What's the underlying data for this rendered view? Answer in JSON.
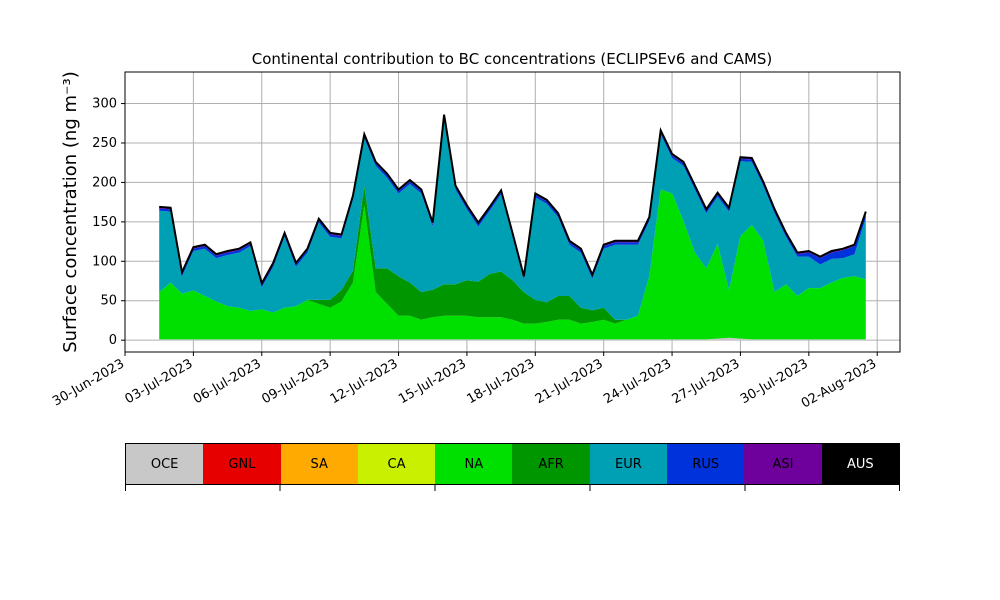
{
  "chart_data": {
    "type": "area",
    "title": "Continental contribution to BC concentrations (ECLIPSEv6 and CAMS)",
    "ylabel": "Surface concentration (ng m⁻³)",
    "xlabel": "",
    "ylim": [
      -15,
      340
    ],
    "x_range": [
      "2023-06-30",
      "2023-08-03"
    ],
    "x_ticks": [
      "30-Jun-2023",
      "03-Jul-2023",
      "06-Jul-2023",
      "09-Jul-2023",
      "12-Jul-2023",
      "15-Jul-2023",
      "18-Jul-2023",
      "21-Jul-2023",
      "24-Jul-2023",
      "27-Jul-2023",
      "30-Jul-2023",
      "02-Aug-2023"
    ],
    "y_ticks": [
      0,
      50,
      100,
      150,
      200,
      250,
      300
    ],
    "grid": true,
    "legend_placement": "bottom colorbar",
    "dates": [
      "2023-07-01T12:00",
      "2023-07-02T00:00",
      "2023-07-02T12:00",
      "2023-07-03T00:00",
      "2023-07-03T12:00",
      "2023-07-04T00:00",
      "2023-07-04T12:00",
      "2023-07-05T00:00",
      "2023-07-05T12:00",
      "2023-07-06T00:00",
      "2023-07-06T12:00",
      "2023-07-07T00:00",
      "2023-07-07T12:00",
      "2023-07-08T00:00",
      "2023-07-08T12:00",
      "2023-07-09T00:00",
      "2023-07-09T12:00",
      "2023-07-10T00:00",
      "2023-07-10T12:00",
      "2023-07-11T00:00",
      "2023-07-11T12:00",
      "2023-07-12T00:00",
      "2023-07-12T12:00",
      "2023-07-13T00:00",
      "2023-07-13T12:00",
      "2023-07-14T00:00",
      "2023-07-14T12:00",
      "2023-07-15T00:00",
      "2023-07-15T12:00",
      "2023-07-16T00:00",
      "2023-07-16T12:00",
      "2023-07-17T00:00",
      "2023-07-17T12:00",
      "2023-07-18T00:00",
      "2023-07-18T12:00",
      "2023-07-19T00:00",
      "2023-07-19T12:00",
      "2023-07-20T00:00",
      "2023-07-20T12:00",
      "2023-07-21T00:00",
      "2023-07-21T12:00",
      "2023-07-22T00:00",
      "2023-07-22T12:00",
      "2023-07-23T00:00",
      "2023-07-23T12:00",
      "2023-07-24T00:00",
      "2023-07-24T12:00",
      "2023-07-25T00:00",
      "2023-07-25T12:00",
      "2023-07-26T00:00",
      "2023-07-26T12:00",
      "2023-07-27T00:00",
      "2023-07-27T12:00",
      "2023-07-28T00:00",
      "2023-07-28T12:00",
      "2023-07-29T00:00",
      "2023-07-29T12:00",
      "2023-07-30T00:00",
      "2023-07-30T12:00",
      "2023-07-31T00:00",
      "2023-07-31T12:00",
      "2023-08-01T00:00",
      "2023-08-01T12:00"
    ],
    "series": [
      {
        "name": "OCE",
        "color": "#c8c8c8",
        "values": [
          1,
          1,
          1,
          1,
          1,
          1,
          1,
          1,
          1,
          1,
          1,
          1,
          1,
          1,
          1,
          1,
          1,
          1,
          1,
          1,
          1,
          1,
          1,
          1,
          1,
          1,
          1,
          1,
          1,
          1,
          1,
          1,
          1,
          1,
          1,
          1,
          1,
          1,
          1,
          1,
          1,
          1,
          1,
          1,
          1,
          1,
          1,
          1,
          1,
          2,
          3,
          2,
          1,
          1,
          1,
          1,
          1,
          1,
          1,
          1,
          1,
          1,
          1
        ]
      },
      {
        "name": "GNL",
        "color": "#e60000",
        "values": [
          0,
          0,
          0,
          0,
          0,
          0,
          0,
          0,
          0,
          0,
          0,
          0,
          0,
          0,
          0,
          0,
          0,
          0,
          0,
          0,
          0,
          0,
          0,
          0,
          0,
          0,
          0,
          0,
          0,
          0,
          0,
          0,
          0,
          0,
          0,
          0,
          0,
          0,
          0,
          0,
          0,
          0,
          0,
          0,
          0,
          0,
          0,
          0,
          0,
          0,
          0,
          0,
          0,
          0,
          0,
          0,
          0,
          0,
          0,
          0,
          0,
          0,
          0
        ]
      },
      {
        "name": "SA",
        "color": "#ffaa00",
        "values": [
          0,
          0,
          0,
          0,
          0,
          0,
          0,
          0,
          0,
          0,
          0,
          0,
          0,
          0,
          0,
          0,
          0,
          0,
          0,
          0,
          0,
          0,
          0,
          0,
          0,
          0,
          0,
          0,
          0,
          0,
          0,
          0,
          0,
          0,
          0,
          0,
          0,
          0,
          0,
          0,
          0,
          0,
          0,
          0,
          0,
          0,
          0,
          0,
          0,
          0,
          0,
          0,
          0,
          0,
          0,
          0,
          0,
          0,
          0,
          0,
          0,
          0,
          0
        ]
      },
      {
        "name": "CA",
        "color": "#c8f000",
        "values": [
          0,
          0,
          0,
          0,
          0,
          0,
          0,
          0,
          0,
          0,
          0,
          0,
          0,
          0,
          0,
          0,
          0,
          0,
          0,
          0,
          0,
          0,
          0,
          0,
          0,
          0,
          0,
          0,
          0,
          0,
          0,
          0,
          0,
          0,
          0,
          0,
          0,
          0,
          0,
          0,
          0,
          0,
          0,
          0,
          0,
          0,
          0,
          0,
          0,
          0,
          0,
          0,
          0,
          0,
          0,
          0,
          0,
          0,
          0,
          0,
          0,
          0,
          0
        ]
      },
      {
        "name": "NA",
        "color": "#00e000",
        "values": [
          60,
          72,
          58,
          62,
          55,
          48,
          42,
          40,
          36,
          38,
          34,
          40,
          42,
          50,
          45,
          40,
          48,
          72,
          170,
          60,
          45,
          30,
          30,
          25,
          28,
          30,
          30,
          30,
          28,
          28,
          28,
          25,
          20,
          20,
          22,
          25,
          25,
          20,
          22,
          25,
          20,
          25,
          30,
          80,
          190,
          185,
          150,
          110,
          90,
          120,
          60,
          130,
          145,
          125,
          60,
          70,
          55,
          65,
          65,
          72,
          78,
          80,
          76
        ]
      },
      {
        "name": "AFR",
        "color": "#009600",
        "values": [
          0,
          0,
          0,
          0,
          0,
          0,
          0,
          0,
          0,
          0,
          0,
          0,
          0,
          0,
          5,
          10,
          15,
          15,
          25,
          30,
          45,
          50,
          42,
          35,
          35,
          40,
          40,
          45,
          45,
          55,
          58,
          50,
          40,
          30,
          25,
          30,
          30,
          20,
          15,
          15,
          5,
          0,
          0,
          0,
          0,
          0,
          0,
          0,
          0,
          0,
          0,
          0,
          0,
          0,
          0,
          0,
          0,
          0,
          0,
          0,
          0,
          0,
          0
        ]
      },
      {
        "name": "EUR",
        "color": "#00a0b4",
        "values": [
          103,
          90,
          22,
          50,
          60,
          55,
          65,
          70,
          82,
          28,
          58,
          90,
          50,
          60,
          98,
          80,
          65,
          90,
          60,
          130,
          115,
          105,
          125,
          125,
          80,
          210,
          120,
          90,
          70,
          80,
          98,
          55,
          15,
          130,
          125,
          100,
          65,
          70,
          40,
          75,
          95,
          95,
          90,
          70,
          70,
          45,
          70,
          80,
          70,
          60,
          100,
          95,
          80,
          70,
          100,
          60,
          50,
          40,
          30,
          30,
          25,
          28,
          78
        ]
      },
      {
        "name": "RUS",
        "color": "#0032dc",
        "values": [
          3,
          3,
          3,
          3,
          3,
          3,
          3,
          3,
          3,
          3,
          3,
          3,
          3,
          3,
          3,
          3,
          3,
          3,
          3,
          3,
          3,
          3,
          3,
          3,
          3,
          3,
          3,
          3,
          3,
          3,
          3,
          3,
          3,
          3,
          3,
          3,
          3,
          3,
          3,
          3,
          3,
          3,
          3,
          3,
          3,
          3,
          3,
          3,
          3,
          3,
          3,
          3,
          3,
          3,
          3,
          3,
          3,
          5,
          8,
          8,
          10,
          10,
          6
        ]
      },
      {
        "name": "ASI",
        "color": "#6e009b",
        "values": [
          2,
          2,
          2,
          2,
          2,
          2,
          2,
          2,
          2,
          2,
          2,
          2,
          2,
          2,
          2,
          2,
          2,
          2,
          2,
          2,
          2,
          2,
          2,
          2,
          2,
          2,
          2,
          2,
          2,
          2,
          2,
          2,
          2,
          2,
          2,
          2,
          2,
          2,
          2,
          2,
          2,
          2,
          2,
          2,
          2,
          2,
          2,
          2,
          2,
          2,
          2,
          2,
          2,
          2,
          2,
          2,
          2,
          2,
          2,
          2,
          2,
          2,
          2
        ]
      },
      {
        "name": "AUS",
        "color": "#000000",
        "values": [
          0,
          0,
          0,
          0,
          0,
          0,
          0,
          0,
          0,
          0,
          0,
          0,
          0,
          0,
          0,
          0,
          0,
          0,
          0,
          0,
          0,
          0,
          0,
          0,
          0,
          0,
          0,
          0,
          0,
          0,
          0,
          0,
          0,
          0,
          0,
          0,
          0,
          0,
          0,
          0,
          0,
          0,
          0,
          0,
          0,
          0,
          0,
          0,
          0,
          0,
          0,
          0,
          0,
          0,
          0,
          0,
          0,
          0,
          0,
          0,
          0,
          0,
          0
        ]
      }
    ],
    "legend_labels": [
      "OCE",
      "GNL",
      "SA",
      "CA",
      "NA",
      "AFR",
      "EUR",
      "RUS",
      "ASI",
      "AUS"
    ],
    "legend_text_colors": [
      "#000000",
      "#000000",
      "#000000",
      "#000000",
      "#000000",
      "#000000",
      "#000000",
      "#000000",
      "#000000",
      "#ffffff"
    ]
  }
}
